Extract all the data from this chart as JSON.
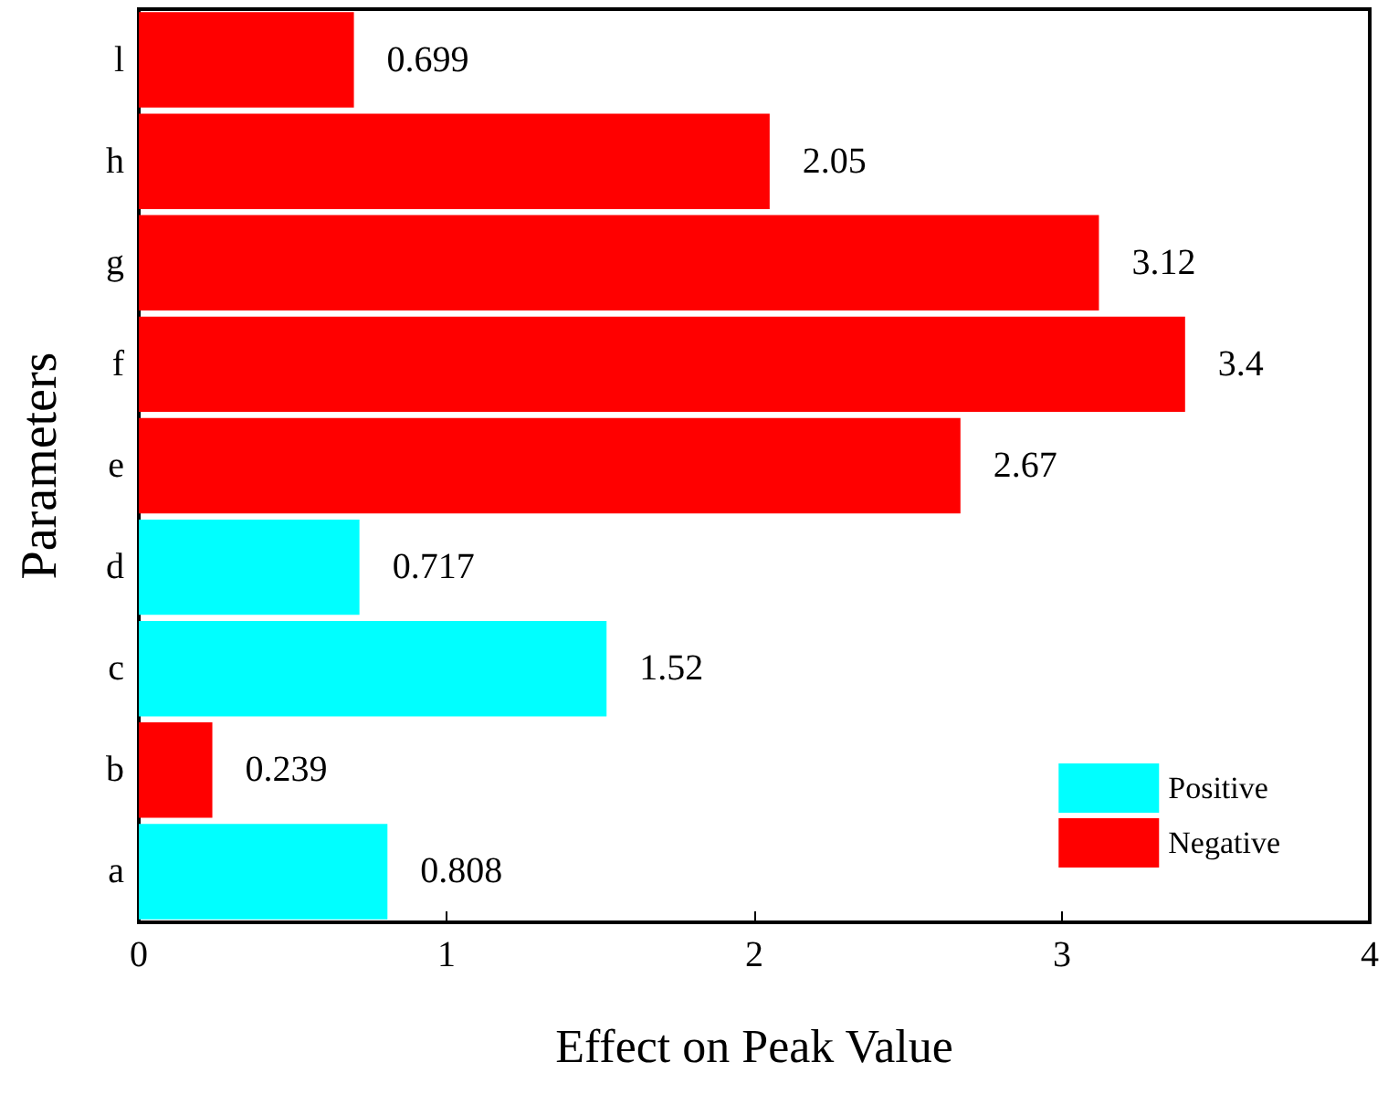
{
  "chart_data": {
    "type": "bar",
    "orientation": "horizontal",
    "stacked": true,
    "xlabel": "Effect on Peak Value",
    "ylabel": "Parameters",
    "categories": [
      "l",
      "h",
      "g",
      "f",
      "e",
      "d",
      "c",
      "b",
      "a"
    ],
    "series": [
      {
        "name": "Positive",
        "color": "#00ffff",
        "values": [
          null,
          null,
          null,
          null,
          null,
          0.717,
          1.52,
          null,
          0.808
        ]
      },
      {
        "name": "Negative",
        "color": "#ff0000",
        "values": [
          0.699,
          2.05,
          3.12,
          3.4,
          2.67,
          null,
          null,
          0.239,
          null
        ]
      }
    ],
    "xlim": [
      0,
      4
    ],
    "xticks": [
      0,
      1,
      2,
      3,
      4
    ],
    "data_labels": true,
    "legend": "bottom right",
    "grid": false
  }
}
